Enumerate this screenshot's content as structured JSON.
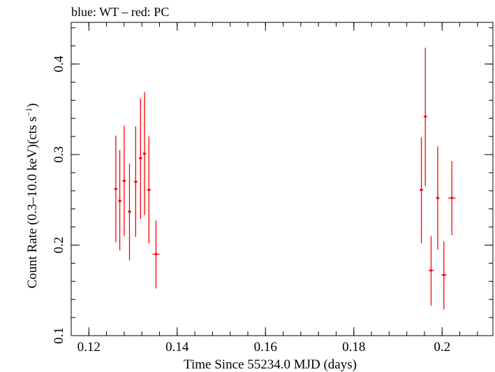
{
  "chart_data": {
    "type": "scatter",
    "title": "blue: WT – red: PC",
    "xlabel": "Time Since 55234.0 MJD (days)",
    "ylabel_main": "Count Rate (0.3–10.0 keV)(cts s",
    "ylabel_sup": "−1",
    "ylabel_end": ")",
    "xlim": [
      0.116,
      0.2115
    ],
    "ylim": [
      0.1,
      0.446
    ],
    "xticks": [
      0.12,
      0.14,
      0.16,
      0.18,
      0.2
    ],
    "xtick_labels": [
      "0.12",
      "0.14",
      "0.16",
      "0.18",
      "0.2"
    ],
    "yticks": [
      0.1,
      0.2,
      0.3,
      0.4
    ],
    "ytick_labels": [
      "0.1",
      "0.2",
      "0.3",
      "0.4"
    ],
    "grid": false,
    "series": [
      {
        "color": "#ff0000",
        "points": [
          {
            "x": 0.1261,
            "xerr": 0.0004,
            "y": 0.262,
            "ylo": 0.203,
            "yhi": 0.321
          },
          {
            "x": 0.127,
            "xerr": 0.0004,
            "y": 0.249,
            "ylo": 0.194,
            "yhi": 0.305
          },
          {
            "x": 0.128,
            "xerr": 0.0004,
            "y": 0.271,
            "ylo": 0.21,
            "yhi": 0.332
          },
          {
            "x": 0.1292,
            "xerr": 0.0004,
            "y": 0.237,
            "ylo": 0.183,
            "yhi": 0.29
          },
          {
            "x": 0.1306,
            "xerr": 0.0004,
            "y": 0.27,
            "ylo": 0.209,
            "yhi": 0.331
          },
          {
            "x": 0.1317,
            "xerr": 0.0004,
            "y": 0.296,
            "ylo": 0.229,
            "yhi": 0.362
          },
          {
            "x": 0.1326,
            "xerr": 0.0004,
            "y": 0.301,
            "ylo": 0.233,
            "yhi": 0.369
          },
          {
            "x": 0.1336,
            "xerr": 0.0004,
            "y": 0.261,
            "ylo": 0.202,
            "yhi": 0.32
          },
          {
            "x": 0.1352,
            "xerr": 0.0008,
            "y": 0.19,
            "ylo": 0.152,
            "yhi": 0.227
          },
          {
            "x": 0.1953,
            "xerr": 0.0004,
            "y": 0.261,
            "ylo": 0.202,
            "yhi": 0.319
          },
          {
            "x": 0.1962,
            "xerr": 0.0004,
            "y": 0.342,
            "ylo": 0.265,
            "yhi": 0.418
          },
          {
            "x": 0.1975,
            "xerr": 0.0006,
            "y": 0.172,
            "ylo": 0.133,
            "yhi": 0.21
          },
          {
            "x": 0.199,
            "xerr": 0.0004,
            "y": 0.252,
            "ylo": 0.195,
            "yhi": 0.309
          },
          {
            "x": 0.2004,
            "xerr": 0.0006,
            "y": 0.167,
            "ylo": 0.129,
            "yhi": 0.204
          },
          {
            "x": 0.2022,
            "xerr": 0.0008,
            "y": 0.252,
            "ylo": 0.211,
            "yhi": 0.293
          }
        ]
      }
    ]
  }
}
